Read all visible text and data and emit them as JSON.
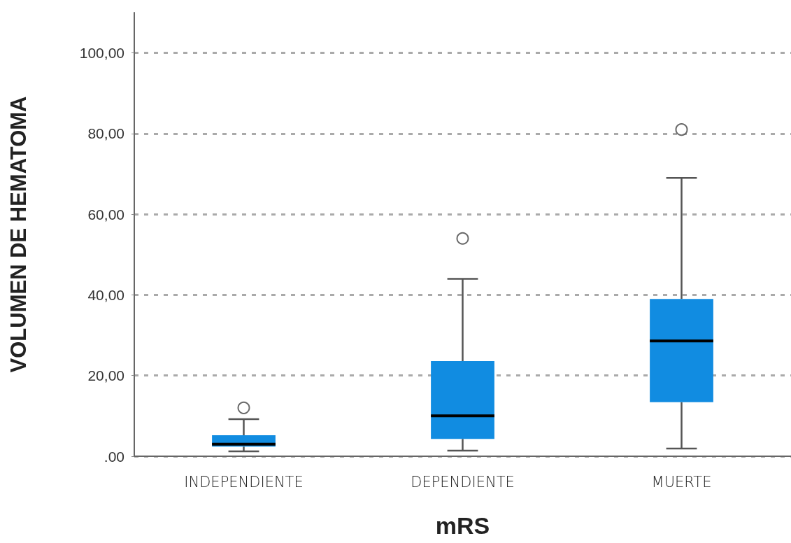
{
  "chart_data": {
    "type": "box",
    "xlabel": "mRS",
    "ylabel": "VOLUMEN DE HEMATOMA",
    "categories": [
      "INDEPENDIENTE",
      "DEPENDIENTE",
      "MUERTE"
    ],
    "color": "#118ce1",
    "boxes": [
      {
        "low": 1.2,
        "q1": 2.4,
        "median": 3,
        "q3": 5.2,
        "high": 9.2,
        "outliers": [
          12
        ]
      },
      {
        "low": 1.4,
        "q1": 4.3,
        "median": 10,
        "q3": 23.6,
        "high": 44,
        "outliers": [
          54
        ]
      },
      {
        "low": 1.9,
        "q1": 13.4,
        "median": 28.6,
        "q3": 39,
        "high": 69,
        "outliers": [
          81
        ]
      }
    ],
    "ylim": [
      0,
      110
    ],
    "yticks": [
      {
        "value": 0,
        "label": ".00"
      },
      {
        "value": 20,
        "label": "20,00"
      },
      {
        "value": 40,
        "label": "40,00"
      },
      {
        "value": 60,
        "label": "60,00"
      },
      {
        "value": 80,
        "label": "80,00"
      },
      {
        "value": 100,
        "label": "100,00"
      }
    ],
    "grid": "y"
  }
}
